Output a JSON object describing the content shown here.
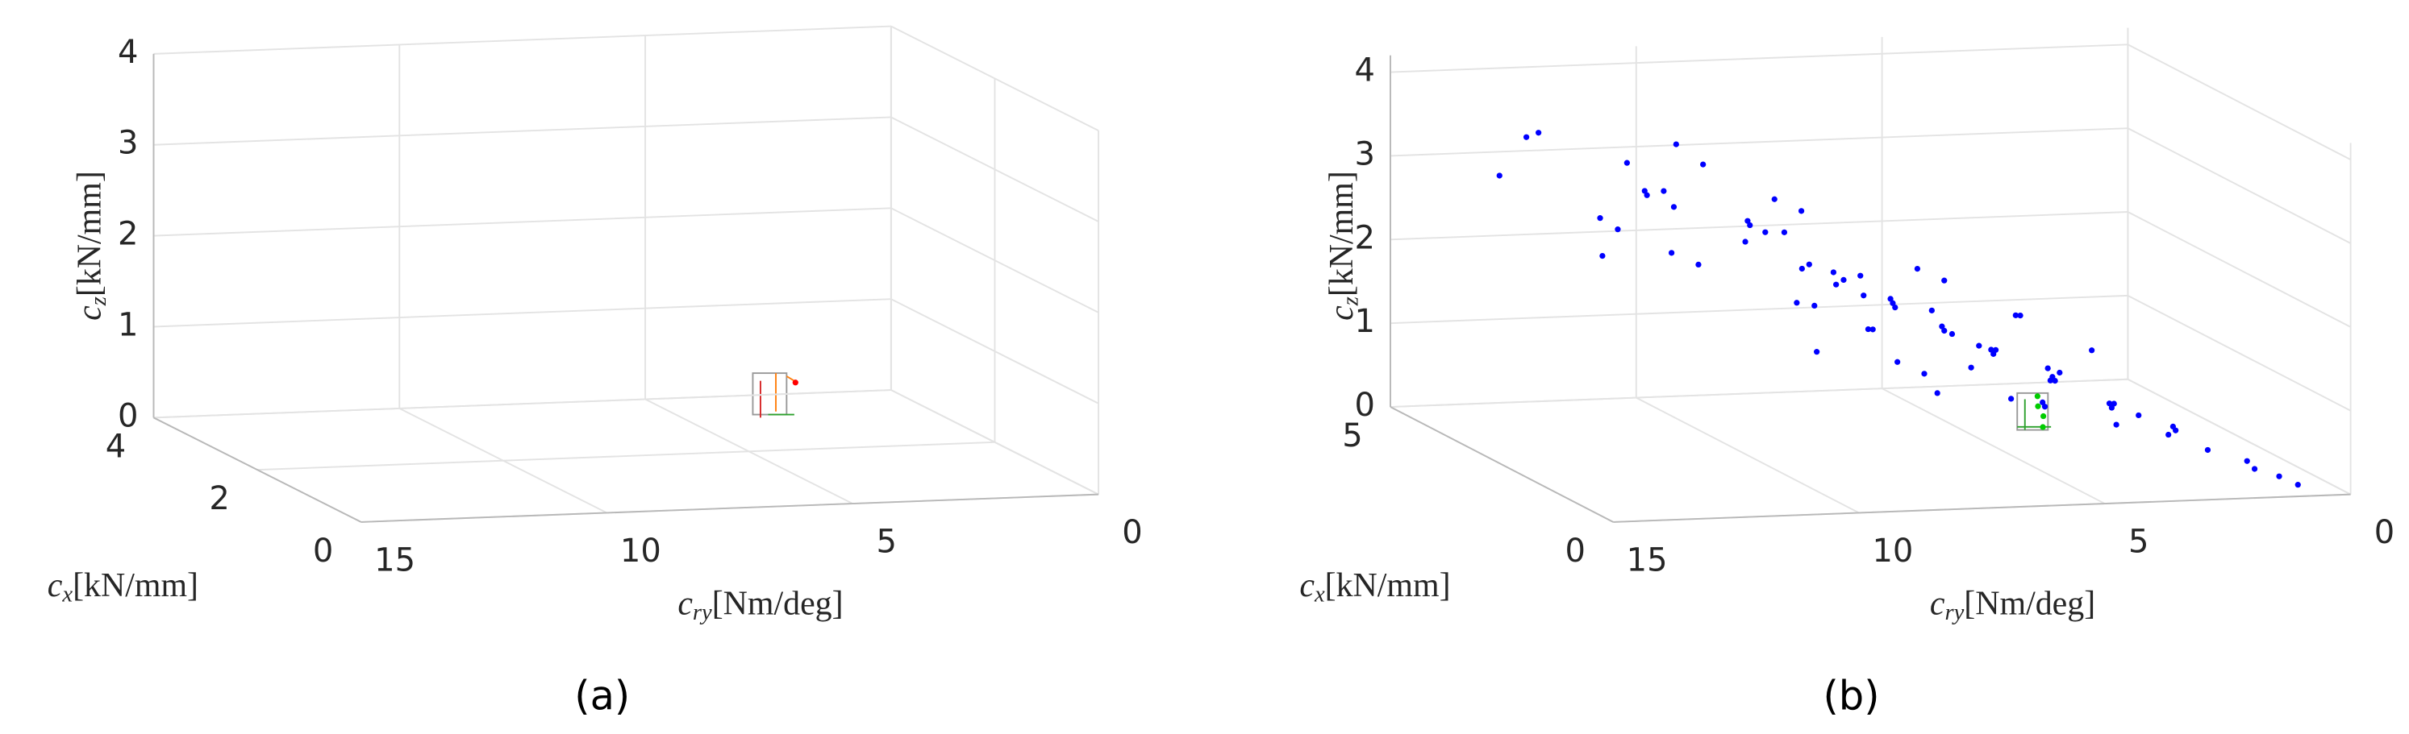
{
  "chart_data": [
    {
      "type": "scatter3d",
      "caption": "(a)",
      "xlabel": {
        "symbol": "c",
        "sub": "ry",
        "unit": "[Nm/deg]"
      },
      "ylabel": {
        "symbol": "c",
        "sub": "x",
        "unit": "[kN/mm]"
      },
      "zlabel": {
        "symbol": "c",
        "sub": "z",
        "unit": "[kN/mm]"
      },
      "xlim": [
        0,
        15
      ],
      "ylim": [
        0,
        4
      ],
      "zlim": [
        0,
        4
      ],
      "xticks": [
        0,
        5,
        10,
        15
      ],
      "yticks": [
        0,
        2,
        4
      ],
      "zticks": [
        0,
        1,
        2,
        3,
        4
      ],
      "grid": true,
      "series": [
        {
          "color": "#ff0000",
          "x": [
            3
          ],
          "y": [
            3
          ],
          "z": [
            0.43
          ]
        }
      ]
    },
    {
      "type": "scatter3d",
      "caption": "(b)",
      "xlabel": {
        "symbol": "c",
        "sub": "ry",
        "unit": "[Nm/deg]"
      },
      "ylabel": {
        "symbol": "c",
        "sub": "x",
        "unit": "[kN/mm]"
      },
      "zlabel": {
        "symbol": "c",
        "sub": "z",
        "unit": "[kN/mm]"
      },
      "xlim": [
        0,
        15
      ],
      "ylim": [
        0,
        5
      ],
      "zlim": [
        0,
        4.2
      ],
      "xticks": [
        0,
        5,
        10,
        15
      ],
      "yticks": [
        0,
        5
      ],
      "zticks": [
        0,
        1,
        2,
        3,
        4
      ],
      "grid": true,
      "series": [
        {
          "color": "#0000ff",
          "x": [
            14.5,
            15.5,
            13.8,
            13,
            12.5,
            12,
            11.5,
            11,
            10.8,
            10.5,
            10,
            9.8,
            9.5,
            9.2,
            9,
            8.8,
            8.5,
            8.2,
            8,
            7.8,
            7.5,
            7.2,
            7,
            6.8,
            6.5,
            6.2,
            6,
            5.8,
            5.5,
            5.2,
            5,
            4.8,
            4.5,
            4.2,
            4,
            3.8,
            3.5,
            3.2,
            3,
            2.8,
            2.5,
            2.2,
            2,
            1.8,
            1.5,
            1.2,
            1,
            0.8,
            12,
            11,
            10,
            9,
            8,
            7,
            6,
            5,
            4,
            13,
            14,
            11,
            10,
            9,
            8,
            7,
            6,
            5,
            4,
            3,
            7.5,
            6.5,
            9.5,
            12.5,
            5.5,
            3.5,
            2.5
          ],
          "y": [
            2.5,
            2,
            3,
            1.5,
            2,
            3,
            2.5,
            1,
            3.5,
            2,
            2.5,
            1.5,
            3,
            2,
            1,
            3,
            2,
            2.5,
            1.5,
            3,
            2,
            1,
            2.5,
            3.5,
            2,
            1.5,
            2.5,
            3,
            2,
            1,
            2.5,
            1.5,
            3,
            2,
            1,
            2.5,
            1.5,
            3,
            2,
            1,
            2,
            1.5,
            1,
            2,
            0.5,
            1,
            0.5,
            0.3,
            2,
            2.5,
            1,
            2.5,
            2,
            3,
            1,
            3,
            2.5,
            2.5,
            1,
            3,
            3.5,
            3,
            3.5,
            2,
            2.5,
            2,
            3,
            2.5,
            1,
            3,
            1.5,
            3,
            3.5,
            3,
            2.5
          ],
          "z": [
            3.9,
            3.6,
            3.8,
            3.5,
            3.3,
            3.4,
            3,
            3.1,
            2.9,
            2.7,
            2.8,
            2.5,
            2.6,
            2.4,
            2.3,
            2.5,
            2.2,
            2,
            2.1,
            2,
            1.9,
            1.8,
            1.7,
            1.8,
            1.6,
            1.5,
            1.4,
            1.5,
            1.3,
            1.2,
            1.1,
            1.2,
            1,
            0.9,
            0.9,
            0.8,
            0.7,
            0.7,
            0.6,
            0.5,
            0.45,
            0.4,
            0.3,
            0.3,
            0.2,
            0.15,
            0.1,
            0.05,
            2.6,
            2.3,
            2.2,
            1.8,
            1.6,
            1.3,
            1,
            0.8,
            0.5,
            2.9,
            3.2,
            3.6,
            3.2,
            2.9,
            2.6,
            2.3,
            2,
            1.7,
            1.4,
            1.1,
            1.1,
            0.9,
            1.5,
            2.3,
            0.6,
            0.3,
            0.2
          ]
        },
        {
          "color": "#00cc00",
          "x": [
            5,
            4.8,
            5.1,
            4.9
          ],
          "y": [
            1.5,
            1.6,
            1.4,
            1.5
          ],
          "z": [
            0.75,
            0.6,
            0.9,
            0.5
          ]
        }
      ]
    }
  ]
}
